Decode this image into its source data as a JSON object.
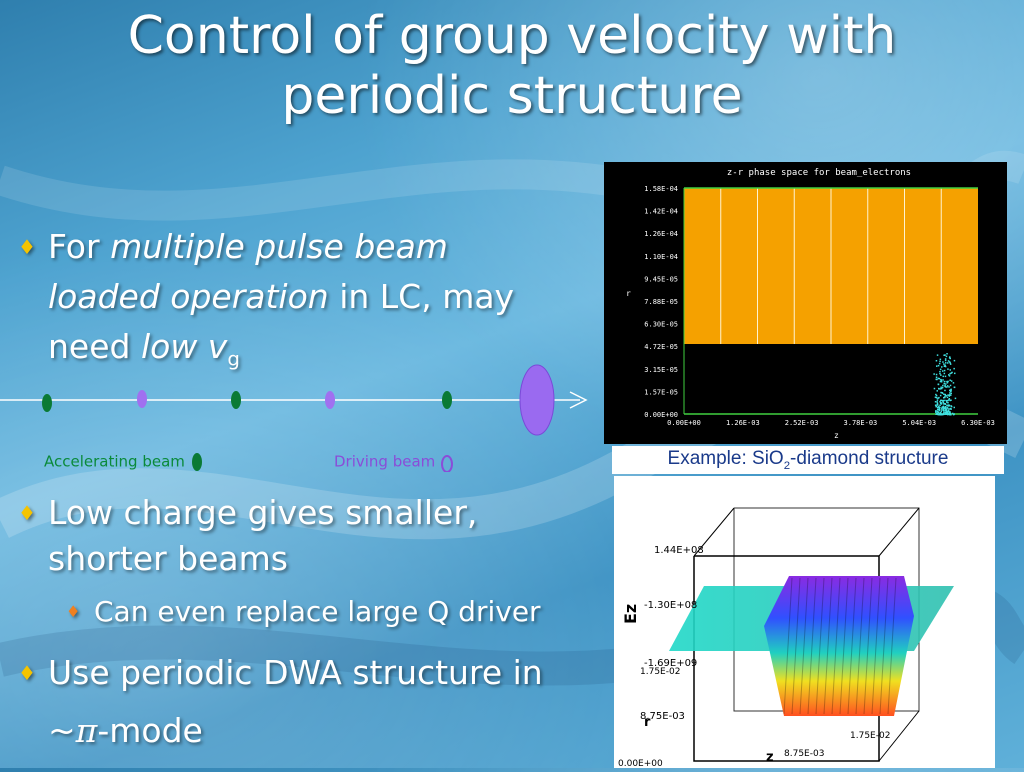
{
  "slide": {
    "title_line1": "Control of group velocity with",
    "title_line2": "periodic structure",
    "bullet1": {
      "pre": "For ",
      "italic1": "multiple pulse beam loaded operation",
      "mid": " in LC, may need ",
      "italic2": "low v",
      "sub": "g"
    },
    "bullet2": "Low charge  gives smaller, shorter beams",
    "sub_bullet": "Can even replace large Q driver",
    "bullet3_line1": "Use periodic DWA structure in",
    "bullet3_tilde": "~",
    "bullet3_pi": "π",
    "bullet3_rest": "-mode",
    "legend_accelerating": "Accelerating beam",
    "legend_driving": "Driving beam",
    "caption_pre": "Example: SiO",
    "caption_sub": "2",
    "caption_post": "-diamond structure"
  },
  "phase_plot": {
    "title": "z-r phase space for beam_electrons",
    "ylabel": "r",
    "xlabel": "z",
    "y_ticks": [
      "1.58E-04",
      "1.42E-04",
      "1.26E-04",
      "1.10E-04",
      "9.45E-05",
      "7.88E-05",
      "6.30E-05",
      "4.72E-05",
      "3.15E-05",
      "1.57E-05",
      "0.00E+00"
    ],
    "x_ticks": [
      "0.00E+00",
      "1.26E-03",
      "2.52E-03",
      "3.78E-03",
      "5.04E-03",
      "6.30E-03"
    ],
    "colors": {
      "structure": "#f5a100",
      "beam": "#3fe0e0",
      "border": "#40d040"
    }
  },
  "field_plot": {
    "ylabel": "Ez",
    "rlabel": "r",
    "zlabel": "z",
    "ez_ticks": [
      "1.44E+08",
      "-1.30E+08",
      "-1.69E+09"
    ],
    "r_ticks": [
      "1.75E-02",
      "8.75E-03",
      "0.00E+00"
    ],
    "z_ticks": [
      "0.00E+00",
      "8.75E-03",
      "1.75E-02"
    ]
  },
  "colors": {
    "bullet_mark": "#f5c400",
    "sub_mark": "#f08020",
    "acc_beam": "#0a8a3a",
    "drv_beam": "#8a4dd8"
  }
}
